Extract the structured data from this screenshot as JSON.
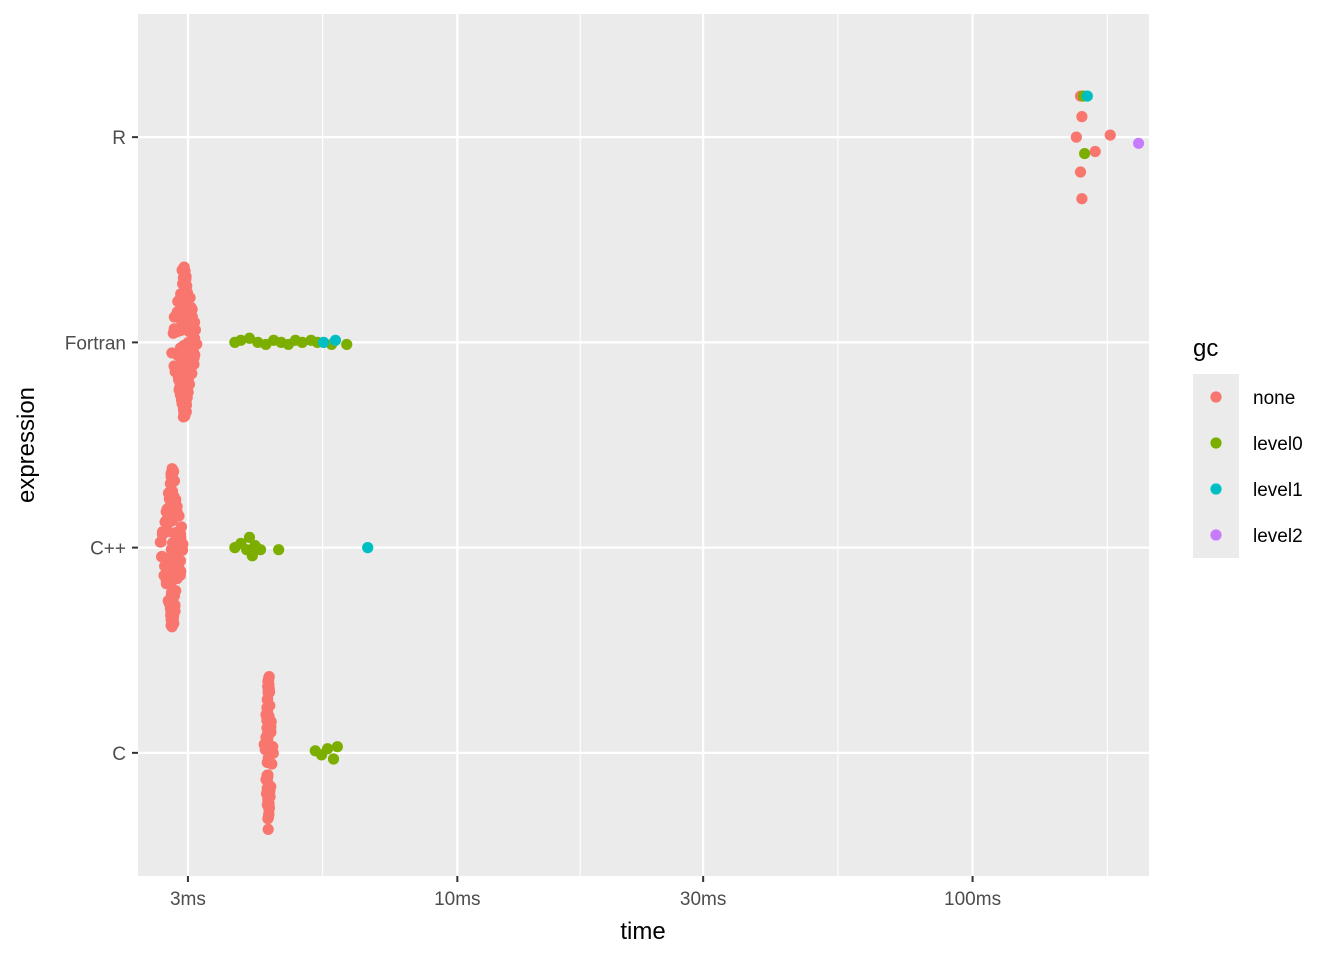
{
  "chart_data": {
    "type": "scatter",
    "xlabel": "time",
    "ylabel": "expression",
    "x_scale": "log10",
    "x_unit": "ms",
    "xlim": [
      2.4,
      220
    ],
    "x_ticks": [
      {
        "value": 3,
        "label": "3ms"
      },
      {
        "value": 10,
        "label": "10ms"
      },
      {
        "value": 30,
        "label": "30ms"
      },
      {
        "value": 100,
        "label": "100ms"
      }
    ],
    "categories": [
      "C",
      "C++",
      "Fortran",
      "R"
    ],
    "grid": true,
    "legend": {
      "title": "gc",
      "position": "right",
      "entries": [
        {
          "name": "none",
          "color": "#F8766D"
        },
        {
          "name": "level0",
          "color": "#7CAE00"
        },
        {
          "name": "level1",
          "color": "#00BFC4"
        },
        {
          "name": "level2",
          "color": "#C77CFF"
        }
      ]
    },
    "series": [
      {
        "name": "none",
        "color": "#F8766D",
        "points": [
          {
            "category": "R",
            "x": 162,
            "offset": 0.2
          },
          {
            "category": "R",
            "x": 163,
            "offset": 0.1
          },
          {
            "category": "R",
            "x": 159,
            "offset": 0.0
          },
          {
            "category": "R",
            "x": 185,
            "offset": 0.01
          },
          {
            "category": "R",
            "x": 173,
            "offset": -0.07
          },
          {
            "category": "R",
            "x": 162,
            "offset": -0.17
          },
          {
            "category": "R",
            "x": 163,
            "offset": -0.3
          }
        ]
      },
      {
        "name": "level0",
        "color": "#7CAE00",
        "points": [
          {
            "category": "R",
            "x": 164,
            "offset": 0.2
          },
          {
            "category": "R",
            "x": 165,
            "offset": -0.08
          },
          {
            "category": "Fortran",
            "x": 3.7,
            "offset": 0.0
          },
          {
            "category": "Fortran",
            "x": 3.8,
            "offset": 0.01
          },
          {
            "category": "Fortran",
            "x": 3.95,
            "offset": 0.02
          },
          {
            "category": "Fortran",
            "x": 4.1,
            "offset": 0.0
          },
          {
            "category": "Fortran",
            "x": 4.25,
            "offset": -0.01
          },
          {
            "category": "Fortran",
            "x": 4.4,
            "offset": 0.01
          },
          {
            "category": "Fortran",
            "x": 4.55,
            "offset": 0.0
          },
          {
            "category": "Fortran",
            "x": 4.7,
            "offset": -0.01
          },
          {
            "category": "Fortran",
            "x": 4.85,
            "offset": 0.01
          },
          {
            "category": "Fortran",
            "x": 5.0,
            "offset": 0.0
          },
          {
            "category": "Fortran",
            "x": 5.2,
            "offset": 0.01
          },
          {
            "category": "Fortran",
            "x": 5.35,
            "offset": 0.0
          },
          {
            "category": "Fortran",
            "x": 5.7,
            "offset": -0.01
          },
          {
            "category": "Fortran",
            "x": 6.1,
            "offset": -0.01
          },
          {
            "category": "C++",
            "x": 3.7,
            "offset": 0.0
          },
          {
            "category": "C++",
            "x": 3.8,
            "offset": 0.02
          },
          {
            "category": "C++",
            "x": 3.9,
            "offset": -0.01
          },
          {
            "category": "C++",
            "x": 3.95,
            "offset": 0.05
          },
          {
            "category": "C++",
            "x": 4.0,
            "offset": -0.04
          },
          {
            "category": "C++",
            "x": 4.05,
            "offset": 0.01
          },
          {
            "category": "C++",
            "x": 4.15,
            "offset": -0.01
          },
          {
            "category": "C++",
            "x": 4.5,
            "offset": -0.01
          },
          {
            "category": "C",
            "x": 5.3,
            "offset": 0.01
          },
          {
            "category": "C",
            "x": 5.45,
            "offset": -0.01
          },
          {
            "category": "C",
            "x": 5.6,
            "offset": 0.02
          },
          {
            "category": "C",
            "x": 5.75,
            "offset": -0.03
          },
          {
            "category": "C",
            "x": 5.85,
            "offset": 0.03
          }
        ]
      },
      {
        "name": "level1",
        "color": "#00BFC4",
        "points": [
          {
            "category": "R",
            "x": 167,
            "offset": 0.2
          },
          {
            "category": "Fortran",
            "x": 5.5,
            "offset": 0.0
          },
          {
            "category": "Fortran",
            "x": 5.8,
            "offset": 0.01
          },
          {
            "category": "C++",
            "x": 6.7,
            "offset": 0.0
          }
        ]
      },
      {
        "name": "level2",
        "color": "#C77CFF",
        "points": [
          {
            "category": "R",
            "x": 210,
            "offset": -0.03
          }
        ]
      }
    ],
    "dense_clusters": [
      {
        "series": "none",
        "category": "Fortran",
        "x_center": 2.95,
        "x_spread": 0.12,
        "offset_range": [
          -0.37,
          0.37
        ],
        "count": 150
      },
      {
        "series": "none",
        "category": "C++",
        "x_center": 2.8,
        "x_spread": 0.1,
        "offset_range": [
          -0.39,
          0.39
        ],
        "count": 110
      },
      {
        "series": "none",
        "category": "C",
        "x_center": 4.3,
        "x_spread": 0.06,
        "offset_range": [
          -0.38,
          0.38
        ],
        "count": 80
      }
    ]
  }
}
